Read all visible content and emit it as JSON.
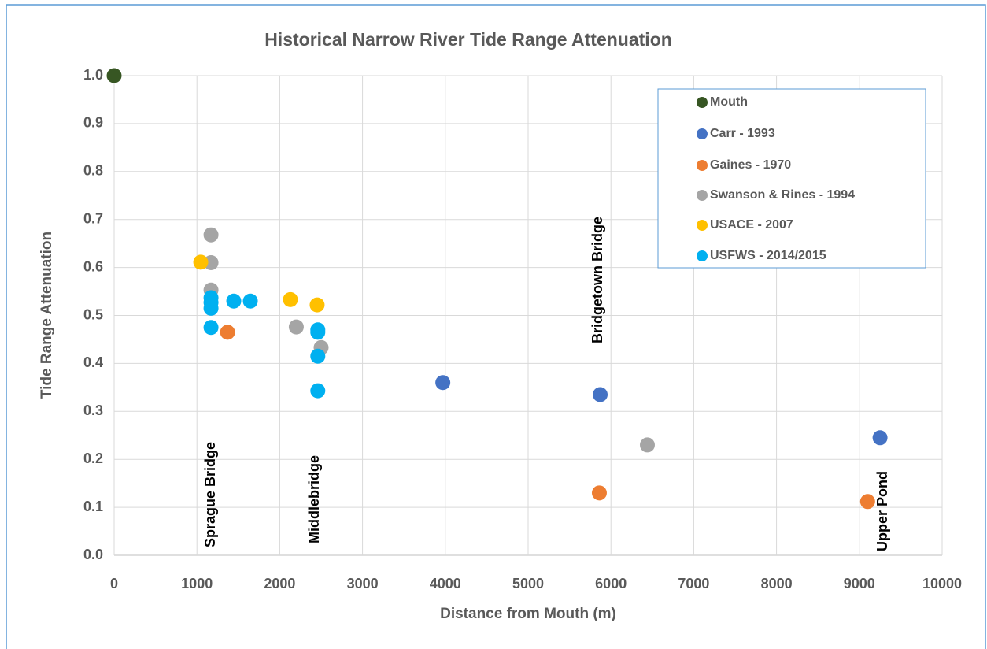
{
  "chart_data": {
    "type": "scatter",
    "title": "Historical Narrow River Tide Range Attenuation",
    "x_label": "Distance from Mouth (m)",
    "y_label": "Tide Range Attenuation",
    "xlim": [
      0,
      10000
    ],
    "xticks": [
      0,
      1000,
      2000,
      3000,
      4000,
      5000,
      6000,
      7000,
      8000,
      9000,
      10000
    ],
    "ylim": [
      0,
      1
    ],
    "yticks": [
      {
        "value": 0,
        "label": "0.0"
      },
      0.1,
      0.2,
      0.3,
      0.4,
      0.5,
      0.6,
      0.7,
      0.8,
      0.9,
      {
        "value": 1,
        "label": "1.0"
      }
    ],
    "grid": true,
    "legend": "upper right",
    "series": [
      {
        "name": "Mouth",
        "color": "#375623",
        "x": [
          0
        ],
        "values": [
          1.0
        ]
      },
      {
        "name": "Carr - 1993",
        "color": "#4472c4",
        "x": [
          3970,
          5870,
          9250
        ],
        "values": [
          0.36,
          0.335,
          0.245
        ]
      },
      {
        "name": "Gaines - 1970",
        "color": "#ed7d31",
        "x": [
          1370,
          5860,
          9100
        ],
        "values": [
          0.465,
          0.13,
          0.112
        ]
      },
      {
        "name": "Swanson & Rines - 1994",
        "color": "#a5a5a5",
        "x": [
          1170,
          1170,
          1170,
          2200,
          2500,
          6440
        ],
        "values": [
          0.668,
          0.61,
          0.553,
          0.476,
          0.433,
          0.23
        ]
      },
      {
        "name": "USACE - 2007",
        "color": "#ffc000",
        "x": [
          1046,
          2129,
          2452
        ],
        "values": [
          0.611,
          0.533,
          0.522
        ]
      },
      {
        "name": "USFWS - 2014/2015",
        "color": "#00b0f0",
        "x": [
          1170,
          1170,
          1170,
          1170,
          1445,
          1645,
          2460,
          2460,
          2460,
          2460
        ],
        "values": [
          0.537,
          0.527,
          0.515,
          0.475,
          0.53,
          0.53,
          0.47,
          0.465,
          0.415,
          0.343
        ]
      }
    ],
    "annotations": [
      "Sprague Bridge",
      "Middlebridge",
      "Bridgetown Bridge",
      "Upper Pond"
    ]
  }
}
